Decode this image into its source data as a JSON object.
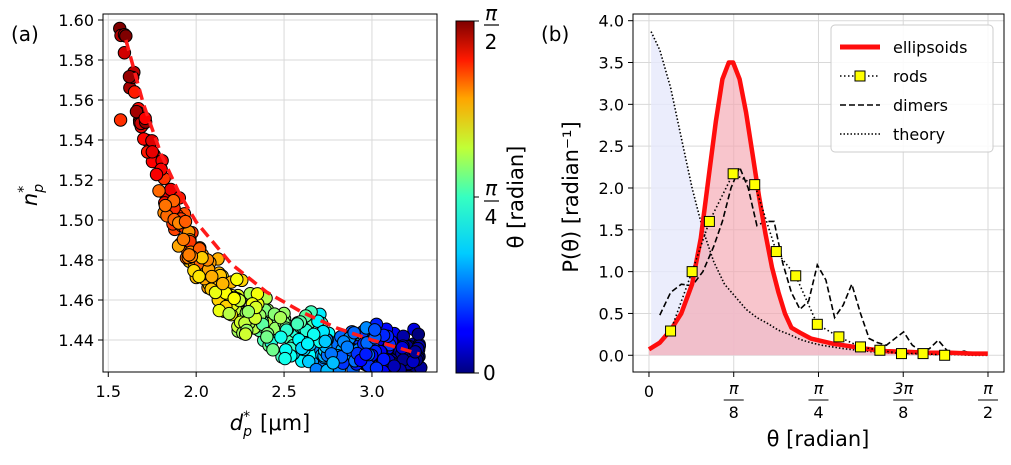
{
  "chart_data": [
    {
      "panel": "(a)",
      "type": "scatter",
      "xlabel_main": "d",
      "xlabel_sup": "*",
      "xlabel_sub": "p",
      "xlabel_unit": "[μm]",
      "ylabel_main": "n",
      "ylabel_sup": "*",
      "ylabel_sub": "p",
      "xlim": [
        1.47,
        3.37
      ],
      "ylim": [
        1.424,
        1.603
      ],
      "xticks": [
        "1.5",
        "2.0",
        "2.5",
        "3.0"
      ],
      "xtick_values": [
        1.5,
        2.0,
        2.5,
        3.0
      ],
      "yticks": [
        "1.44",
        "1.46",
        "1.48",
        "1.50",
        "1.52",
        "1.54",
        "1.56",
        "1.58",
        "1.60"
      ],
      "ytick_values": [
        1.44,
        1.46,
        1.48,
        1.5,
        1.52,
        1.54,
        1.56,
        1.58,
        1.6
      ],
      "grid": true,
      "points_generator": {
        "count": 430,
        "x_from": 1.55,
        "x_to": 3.28,
        "model": "1.43 + 0.16*exp(-(x-1.58)/0.38)",
        "y_noise": 0.008,
        "color_by": "theta"
      },
      "fit_line": {
        "color": "#ff1a1a",
        "style": "dashed",
        "x": [
          1.6,
          1.7,
          1.8,
          1.9,
          2.0,
          2.2,
          2.4,
          2.6,
          2.8,
          3.0,
          3.27
        ],
        "y": [
          1.59,
          1.558,
          1.533,
          1.514,
          1.499,
          1.478,
          1.464,
          1.454,
          1.446,
          1.44,
          1.433
        ]
      },
      "colorbar": {
        "label": "θ [radian]",
        "ticks": [
          "0",
          "π/4",
          "π/2"
        ],
        "tick_values": [
          0,
          0.785,
          1.571
        ],
        "range": [
          0,
          1.571
        ],
        "cmap": "jet"
      }
    },
    {
      "panel": "(b)",
      "type": "line",
      "xlabel": "θ [radian]",
      "ylabel": "P(θ) [radian⁻¹]",
      "xlim": [
        -0.074,
        1.645
      ],
      "ylim": [
        -0.2,
        4.08
      ],
      "xticks": [
        "0",
        "π/8",
        "π/4",
        "3π/8",
        "π/2"
      ],
      "xtick_values": [
        0,
        0.3927,
        0.7854,
        1.1781,
        1.5708
      ],
      "yticks": [
        "0.0",
        "0.5",
        "1.0",
        "1.5",
        "2.0",
        "2.5",
        "3.0",
        "3.5",
        "4.0"
      ],
      "ytick_values": [
        0,
        0.5,
        1,
        1.5,
        2,
        2.5,
        3,
        3.5,
        4
      ],
      "grid": true,
      "series": [
        {
          "name": "ellipsoids",
          "style": "solid-thick",
          "color": "#ff0d0d",
          "fill": "#f4a6b0",
          "x": [
            0,
            0.05,
            0.1,
            0.15,
            0.2,
            0.24,
            0.28,
            0.31,
            0.34,
            0.37,
            0.39,
            0.42,
            0.45,
            0.48,
            0.51,
            0.54,
            0.57,
            0.6,
            0.63,
            0.66,
            0.7,
            0.75,
            0.8,
            0.85,
            0.9,
            0.95,
            1.0,
            1.1,
            1.2,
            1.3,
            1.4,
            1.5,
            1.57
          ],
          "y": [
            0.07,
            0.15,
            0.3,
            0.5,
            0.85,
            1.4,
            2.2,
            2.8,
            3.3,
            3.5,
            3.5,
            3.3,
            2.9,
            2.4,
            1.9,
            1.45,
            1.05,
            0.75,
            0.5,
            0.33,
            0.27,
            0.2,
            0.17,
            0.14,
            0.12,
            0.1,
            0.08,
            0.05,
            0.04,
            0.03,
            0.03,
            0.02,
            0.02
          ]
        },
        {
          "name": "rods",
          "style": "dotted-markers",
          "color": "#000000",
          "marker_fill": "#ffff00",
          "x": [
            0.1,
            0.2,
            0.28,
            0.39,
            0.49,
            0.59,
            0.68,
            0.78,
            0.88,
            0.98,
            1.07,
            1.17,
            1.27,
            1.37
          ],
          "y": [
            0.29,
            1.0,
            1.6,
            2.17,
            2.04,
            1.24,
            0.95,
            0.37,
            0.22,
            0.1,
            0.06,
            0.02,
            0.02,
            0.0
          ]
        },
        {
          "name": "dimers",
          "style": "dashed",
          "color": "#000000",
          "x": [
            0.05,
            0.1,
            0.15,
            0.2,
            0.25,
            0.3,
            0.34,
            0.38,
            0.42,
            0.46,
            0.5,
            0.54,
            0.58,
            0.62,
            0.66,
            0.7,
            0.74,
            0.78,
            0.82,
            0.86,
            0.9,
            0.94,
            0.98,
            1.02,
            1.06,
            1.1,
            1.14,
            1.18,
            1.22,
            1.26,
            1.3,
            1.34,
            1.38,
            1.42,
            1.46,
            1.5
          ],
          "y": [
            0.48,
            0.75,
            0.85,
            0.83,
            1.0,
            1.3,
            1.6,
            2.0,
            2.25,
            2.0,
            1.55,
            1.6,
            1.6,
            1.1,
            0.75,
            0.55,
            0.65,
            1.08,
            0.9,
            0.45,
            0.6,
            0.85,
            0.5,
            0.2,
            0.15,
            0.12,
            0.2,
            0.28,
            0.12,
            0.05,
            0.08,
            0.18,
            0.06,
            0.02,
            0.05,
            0.02
          ]
        },
        {
          "name": "theory",
          "style": "dotted",
          "color": "#000000",
          "x": [
            0.01,
            0.05,
            0.1,
            0.15,
            0.2,
            0.25,
            0.3,
            0.35,
            0.4,
            0.45,
            0.5,
            0.55,
            0.6,
            0.65,
            0.7,
            0.75,
            0.8,
            0.9,
            1.0,
            1.1,
            1.2,
            1.3,
            1.4,
            1.5,
            1.57
          ],
          "y": [
            3.87,
            3.65,
            3.2,
            2.6,
            2.0,
            1.5,
            1.12,
            0.85,
            0.7,
            0.55,
            0.45,
            0.38,
            0.3,
            0.25,
            0.19,
            0.15,
            0.12,
            0.08,
            0.05,
            0.03,
            0.02,
            0.01,
            0.01,
            0.0,
            0.0
          ]
        }
      ],
      "legend_position": "top-right"
    }
  ]
}
